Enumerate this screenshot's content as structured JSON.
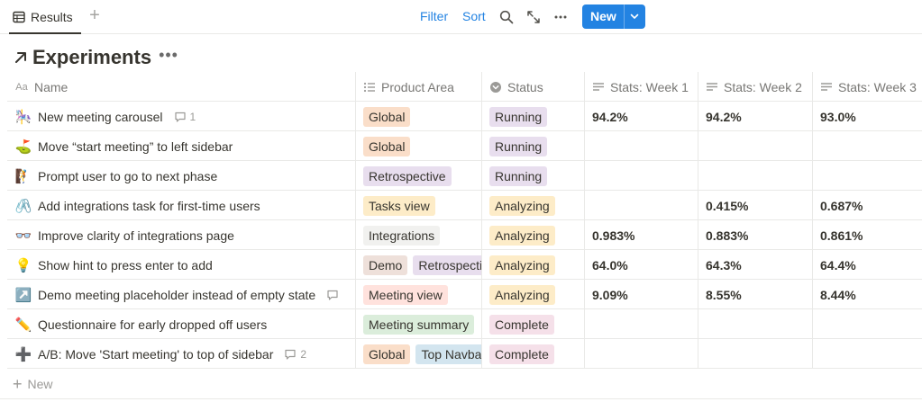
{
  "toolbar": {
    "tab_label": "Results",
    "filter_label": "Filter",
    "sort_label": "Sort",
    "new_label": "New",
    "accent_color": "#2383e2"
  },
  "title": "Experiments",
  "columns": {
    "name": "Name",
    "product_area": "Product Area",
    "status": "Status",
    "week1": "Stats: Week 1",
    "week2": "Stats: Week 2",
    "week3": "Stats: Week 3"
  },
  "rows": [
    {
      "emoji": "🎠",
      "name": "New meeting carousel",
      "comments": "1",
      "areas": [
        {
          "label": "Global",
          "bg": "#fadec9"
        }
      ],
      "status": {
        "label": "Running",
        "bg": "#e8deee"
      },
      "w1": "94.2%",
      "w2": "94.2%",
      "w3": "93.0%"
    },
    {
      "emoji": "⛳",
      "name": "Move “start meeting” to left sidebar",
      "comments": "",
      "areas": [
        {
          "label": "Global",
          "bg": "#fadec9"
        }
      ],
      "status": {
        "label": "Running",
        "bg": "#e8deee"
      },
      "w1": "",
      "w2": "",
      "w3": ""
    },
    {
      "emoji": "🧗",
      "name": "Prompt user to go to next phase",
      "comments": "",
      "areas": [
        {
          "label": "Retrospective",
          "bg": "#e8deee"
        }
      ],
      "status": {
        "label": "Running",
        "bg": "#e8deee"
      },
      "w1": "",
      "w2": "",
      "w3": ""
    },
    {
      "emoji": "🖇️",
      "name": "Add integrations task for first-time users",
      "comments": "",
      "areas": [
        {
          "label": "Tasks view",
          "bg": "#fdecc8"
        }
      ],
      "status": {
        "label": "Analyzing",
        "bg": "#fdecc8"
      },
      "w1": "",
      "w2": "0.415%",
      "w3": "0.687%"
    },
    {
      "emoji": "👓",
      "name": "Improve clarity of integrations page",
      "comments": "",
      "areas": [
        {
          "label": "Integrations",
          "bg": "#f1f1ef"
        }
      ],
      "status": {
        "label": "Analyzing",
        "bg": "#fdecc8"
      },
      "w1": "0.983%",
      "w2": "0.883%",
      "w3": "0.861%"
    },
    {
      "emoji": "💡",
      "name": "Show hint to press enter to add",
      "comments": "",
      "areas": [
        {
          "label": "Demo",
          "bg": "#eee0da"
        },
        {
          "label": "Retrospective",
          "bg": "#e8deee"
        }
      ],
      "status": {
        "label": "Analyzing",
        "bg": "#fdecc8"
      },
      "w1": "64.0%",
      "w2": "64.3%",
      "w3": "64.4%"
    },
    {
      "emoji": "↗️",
      "name": "Demo meeting placeholder instead of empty state",
      "comments": "",
      "areas": [
        {
          "label": "Meeting view",
          "bg": "#ffe2dd"
        }
      ],
      "status": {
        "label": "Analyzing",
        "bg": "#fdecc8"
      },
      "w1": "9.09%",
      "w2": "8.55%",
      "w3": "8.44%"
    },
    {
      "emoji": "✏️",
      "name": "Questionnaire for early dropped off users",
      "comments": "",
      "areas": [
        {
          "label": "Meeting summary",
          "bg": "#dbeddb"
        }
      ],
      "status": {
        "label": "Complete",
        "bg": "#f5e0e9"
      },
      "w1": "",
      "w2": "",
      "w3": ""
    },
    {
      "emoji": "➕",
      "name": "A/B: Move 'Start meeting' to top of sidebar",
      "comments": "2",
      "areas": [
        {
          "label": "Global",
          "bg": "#fadec9"
        },
        {
          "label": "Top Navbar",
          "bg": "#d3e5ef"
        }
      ],
      "status": {
        "label": "Complete",
        "bg": "#f5e0e9"
      },
      "w1": "",
      "w2": "",
      "w3": ""
    }
  ],
  "new_row_label": "New"
}
